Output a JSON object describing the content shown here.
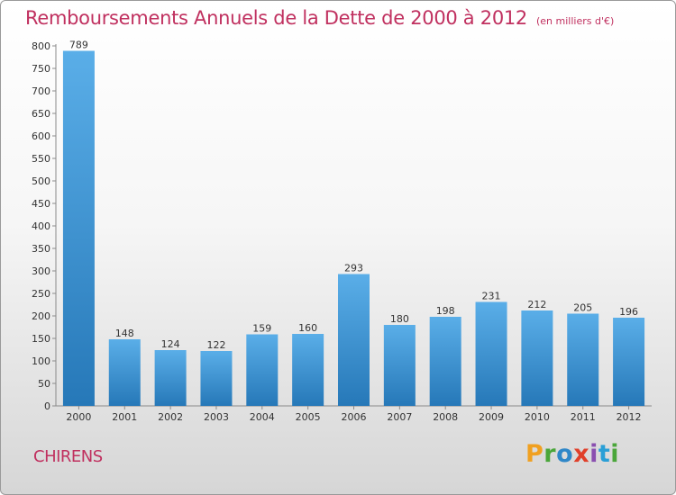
{
  "title": "Remboursements Annuels de la Dette de 2000 à 2012",
  "subtitle": "(en milliers d'€)",
  "city": "CHIRENS",
  "logo_text": "Proxiti",
  "colors": {
    "title": "#c0305f",
    "bar_top": "#5aaee8",
    "bar_bottom": "#2678b8"
  },
  "chart_data": {
    "type": "bar",
    "categories": [
      "2000",
      "2001",
      "2002",
      "2003",
      "2004",
      "2005",
      "2006",
      "2007",
      "2008",
      "2009",
      "2010",
      "2011",
      "2012"
    ],
    "values": [
      789,
      148,
      124,
      122,
      159,
      160,
      293,
      180,
      198,
      231,
      212,
      205,
      196
    ],
    "ylim": [
      0,
      800
    ],
    "yticks": [
      0,
      50,
      100,
      150,
      200,
      250,
      300,
      350,
      400,
      450,
      500,
      550,
      600,
      650,
      700,
      750,
      800
    ],
    "grid": false,
    "title": "Remboursements Annuels de la Dette de 2000 à 2012",
    "subtitle": "(en milliers d'€)"
  }
}
